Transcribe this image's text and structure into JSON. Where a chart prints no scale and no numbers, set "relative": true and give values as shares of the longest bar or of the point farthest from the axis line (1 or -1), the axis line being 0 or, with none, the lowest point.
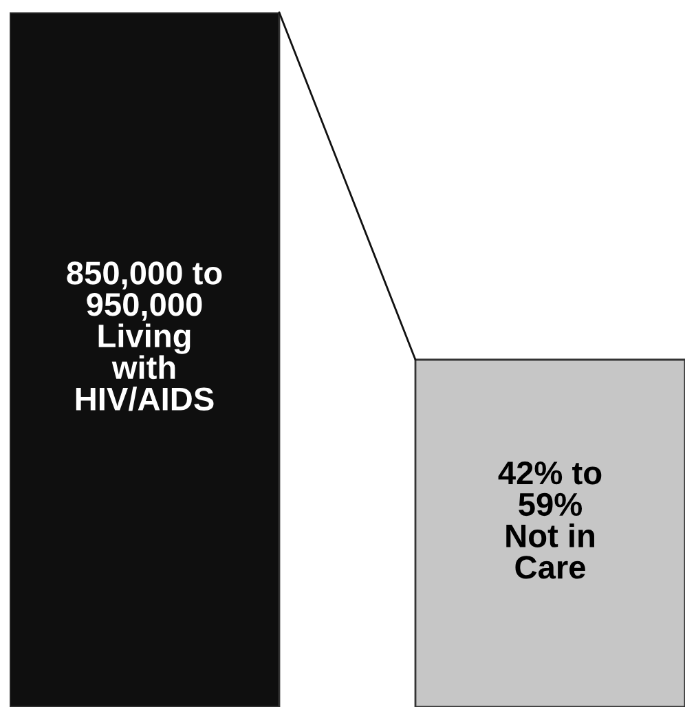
{
  "chart_data": {
    "type": "bar",
    "relative": true,
    "categories": [
      null,
      null
    ],
    "values": [
      1,
      0.5
    ],
    "colors": [
      "#0f0f0f",
      "#c6c6c6"
    ],
    "annotations": [
      "850,000 to\n950,000\nLiving\nwith\nHIV/AIDS",
      "42% to\n59%\nNot in\nCare"
    ]
  }
}
